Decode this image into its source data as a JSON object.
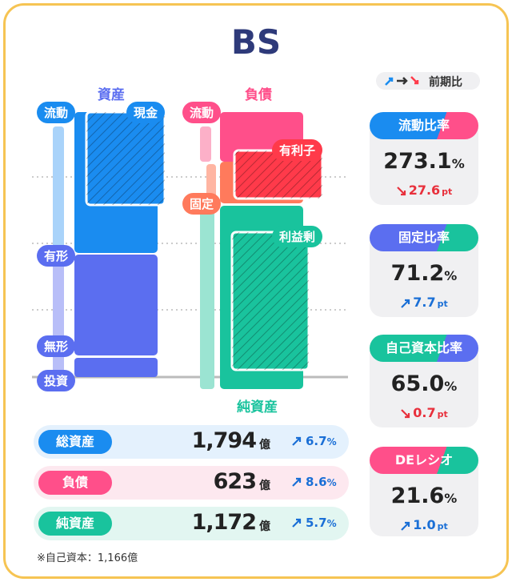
{
  "title": "BS",
  "legend": {
    "label": "前期比"
  },
  "assets": {
    "header": "資産",
    "labels": [
      "流動",
      "現金",
      "有形",
      "無形",
      "投資"
    ]
  },
  "liabilities": {
    "header": "負債",
    "labels": [
      "流動",
      "有利子",
      "固定",
      "利益剰"
    ],
    "equity_header": "純資産"
  },
  "summary": [
    {
      "label": "総資産",
      "value": "1,794",
      "unit": "億",
      "change": "6.7",
      "change_unit": "%",
      "direction": "up",
      "color": "#1a8cf0",
      "bg": "#e4f1fd"
    },
    {
      "label": "負債",
      "value": "623",
      "unit": "億",
      "change": "8.6",
      "change_unit": "%",
      "direction": "up",
      "color": "#ff4f8a",
      "bg": "#fde8ef"
    },
    {
      "label": "純資産",
      "value": "1,172",
      "unit": "億",
      "change": "5.7",
      "change_unit": "%",
      "direction": "up",
      "color": "#19c39d",
      "bg": "#e2f6f1"
    }
  ],
  "note": "※自己資本：1,166億",
  "ratios": [
    {
      "label": "流動比率",
      "value": "273.1",
      "unit": "%",
      "change": "27.6",
      "change_unit": "pt",
      "direction": "down",
      "color": "#1a8cf0",
      "color2": "#ff4f8a"
    },
    {
      "label": "固定比率",
      "value": "71.2",
      "unit": "%",
      "change": "7.7",
      "change_unit": "pt",
      "direction": "up",
      "color": "#5b6ef0",
      "color2": "#19c39d"
    },
    {
      "label": "自己資本比率",
      "value": "65.0",
      "unit": "%",
      "change": "0.7",
      "change_unit": "pt",
      "direction": "down",
      "color": "#19c39d",
      "color2": "#5b6ef0"
    },
    {
      "label": "DEレシオ",
      "value": "21.6",
      "unit": "%",
      "change": "1.0",
      "change_unit": "pt",
      "direction": "up",
      "color": "#ff4f8a",
      "color2": "#19c39d"
    }
  ]
}
